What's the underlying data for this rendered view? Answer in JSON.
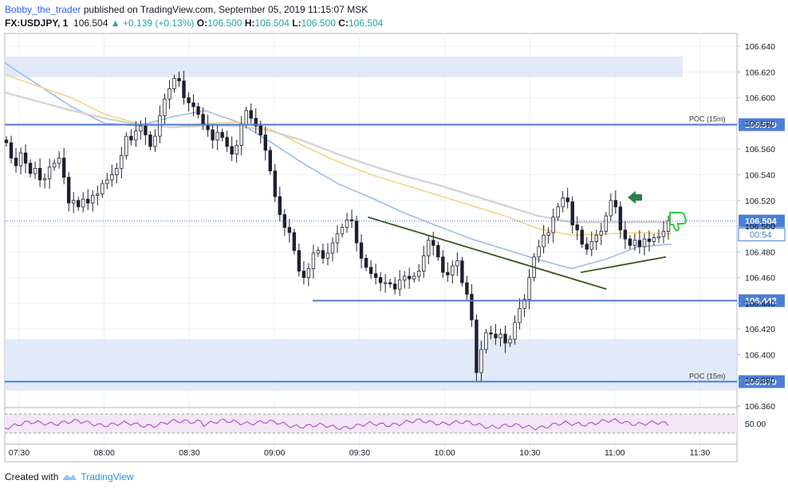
{
  "header": {
    "author": "Bobby_the_trader",
    "published": "published on TradingView.com, September 05, 2019 11:15:07 MSK",
    "symbol": "FX:USDJPY, 1",
    "last": "106.504",
    "change": "+0.139 (+0.13%)",
    "o_label": "O:",
    "o_value": "106.500",
    "h_label": "H:",
    "h_value": "106.504",
    "l_label": "L:",
    "l_value": "106.500",
    "c_label": "C:",
    "c_value": "106.504"
  },
  "footer": {
    "created": "Created with",
    "brand": "TradingView"
  },
  "colors": {
    "up": "#26a69a",
    "ink": "#131722",
    "zone": "#dbe6f7",
    "level": "#4a7cd6",
    "ma_fast": "#9ebbe8",
    "ma_mid": "#f2d58a",
    "ma_slow": "#d4d4d4",
    "trend": "#38561a",
    "rsi_band": "#f3e6f7",
    "rsi_line": "#a63fbf",
    "arrow": "#2e7d4f",
    "thumb": "#2ecc40"
  },
  "chart_data": {
    "type": "candlestick",
    "ylim": [
      106.36,
      106.65
    ],
    "y_ticks": [
      "106.640",
      "106.620",
      "106.600",
      "106.580",
      "106.560",
      "106.540",
      "106.520",
      "106.500",
      "106.480",
      "106.460",
      "106.440",
      "106.420",
      "106.400",
      "106.380",
      "106.360"
    ],
    "x_ticks": [
      "07:30",
      "08:00",
      "08:30",
      "09:00",
      "09:30",
      "10:00",
      "10:30",
      "11:00",
      "11:30"
    ],
    "x_range": [
      "07:25",
      "11:43"
    ],
    "last_price": {
      "value": "106.504",
      "countdown": "00:54"
    },
    "levels": [
      {
        "value": 106.579,
        "label": "106.579",
        "tag": "POC (15m)"
      },
      {
        "value": 106.442,
        "label": "106.442",
        "tag": ""
      },
      {
        "value": 106.379,
        "label": "106.379",
        "tag": "POC (15m)"
      }
    ],
    "zones": [
      [
        106.616,
        106.632
      ],
      [
        106.372,
        106.412
      ]
    ],
    "trendlines": [
      {
        "from": [
          "09:33",
          106.507
        ],
        "to": [
          "10:57",
          106.451
        ]
      },
      {
        "from": [
          "10:48",
          106.464
        ],
        "to": [
          "11:18",
          106.476
        ]
      }
    ],
    "moving_averages": [
      {
        "name": "MA fast",
        "points": [
          106.627,
          106.61,
          106.593,
          106.58,
          106.578,
          106.585,
          106.59,
          106.581,
          106.565,
          106.548,
          106.533,
          106.522,
          106.51,
          106.5,
          106.49,
          106.482,
          106.474,
          106.467,
          106.474,
          106.484,
          106.486
        ]
      },
      {
        "name": "MA mid",
        "points": [
          106.618,
          106.609,
          106.6,
          106.587,
          106.58,
          106.577,
          106.58,
          106.581,
          106.575,
          106.562,
          106.55,
          106.54,
          106.532,
          106.524,
          106.516,
          106.508,
          106.498,
          106.493,
          106.494,
          106.495,
          106.494
        ]
      },
      {
        "name": "MA slow",
        "points": [
          106.604,
          106.597,
          106.59,
          106.584,
          106.579,
          106.577,
          106.578,
          106.578,
          106.574,
          106.566,
          106.556,
          106.547,
          106.539,
          106.532,
          106.524,
          106.516,
          106.508,
          106.503,
          106.503,
          106.503,
          106.503
        ]
      }
    ],
    "candles_close": [
      106.565,
      106.553,
      106.547,
      106.557,
      106.549,
      106.541,
      106.545,
      106.536,
      106.537,
      106.546,
      106.549,
      106.553,
      106.538,
      106.518,
      106.52,
      106.515,
      106.521,
      106.518,
      106.524,
      106.525,
      106.533,
      106.536,
      106.54,
      106.545,
      106.555,
      106.57,
      106.567,
      106.574,
      106.578,
      106.571,
      106.562,
      106.57,
      106.586,
      106.599,
      106.607,
      106.615,
      106.613,
      106.6,
      106.596,
      106.593,
      106.587,
      106.579,
      106.575,
      106.567,
      106.573,
      106.569,
      106.562,
      106.556,
      106.563,
      106.579,
      106.59,
      106.584,
      106.578,
      106.571,
      106.559,
      106.543,
      106.523,
      106.509,
      106.499,
      106.495,
      106.481,
      106.465,
      106.46,
      106.467,
      106.479,
      106.481,
      106.475,
      106.479,
      106.487,
      106.494,
      106.499,
      106.505,
      106.504,
      106.487,
      106.475,
      106.468,
      106.463,
      106.46,
      106.456,
      106.456,
      106.455,
      106.451,
      106.458,
      106.461,
      106.459,
      106.461,
      106.465,
      106.477,
      106.489,
      106.485,
      106.476,
      106.464,
      106.462,
      106.469,
      106.473,
      106.456,
      106.447,
      106.427,
      106.386,
      106.404,
      106.417,
      106.416,
      106.413,
      106.416,
      106.409,
      106.412,
      106.425,
      106.436,
      106.443,
      106.46,
      106.476,
      106.484,
      106.493,
      106.495,
      106.507,
      106.515,
      106.522,
      106.519,
      106.501,
      106.497,
      106.486,
      106.482,
      106.488,
      106.493,
      106.496,
      106.508,
      106.52,
      106.515,
      106.497,
      106.49,
      106.485,
      106.489,
      106.484,
      106.49,
      106.488,
      106.491,
      106.492,
      106.496,
      106.504
    ],
    "rsi": {
      "level_label": "50.00"
    }
  }
}
